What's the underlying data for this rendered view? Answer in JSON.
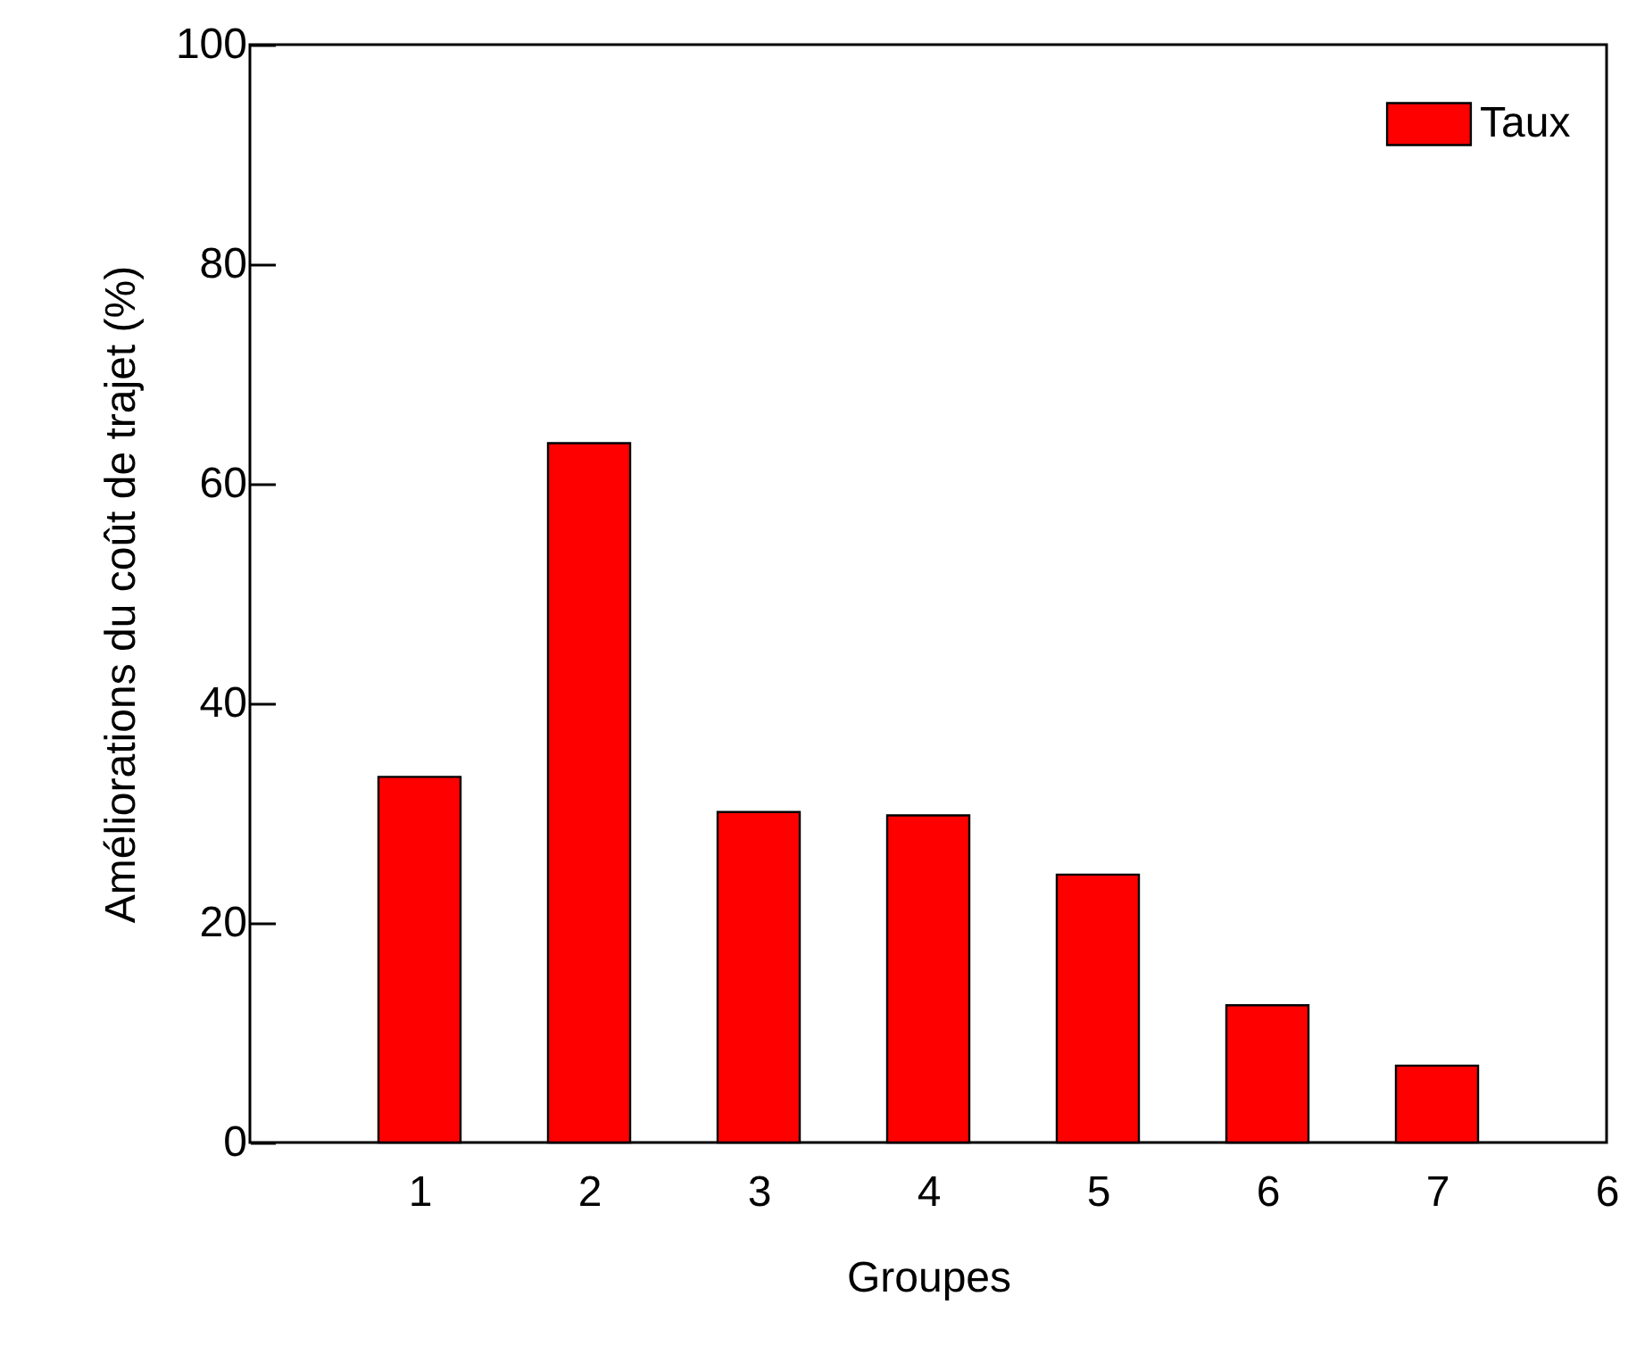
{
  "chart_data": {
    "type": "bar",
    "xlabel": "Groupes",
    "ylabel": "Améliorations du coût de trajet (%)",
    "categories": [
      null,
      "1",
      "2",
      "3",
      "4",
      "5",
      "6",
      "7",
      "6"
    ],
    "series": [
      {
        "name": "Taux",
        "color": "#ff0000",
        "values": [
          null,
          33.3,
          63.7,
          30.1,
          29.8,
          24.4,
          12.5,
          7.0,
          null
        ]
      }
    ],
    "ylim": [
      0,
      100
    ],
    "yticks": [
      0,
      20,
      40,
      60,
      80,
      100
    ],
    "grid": false,
    "legend": "top right"
  }
}
